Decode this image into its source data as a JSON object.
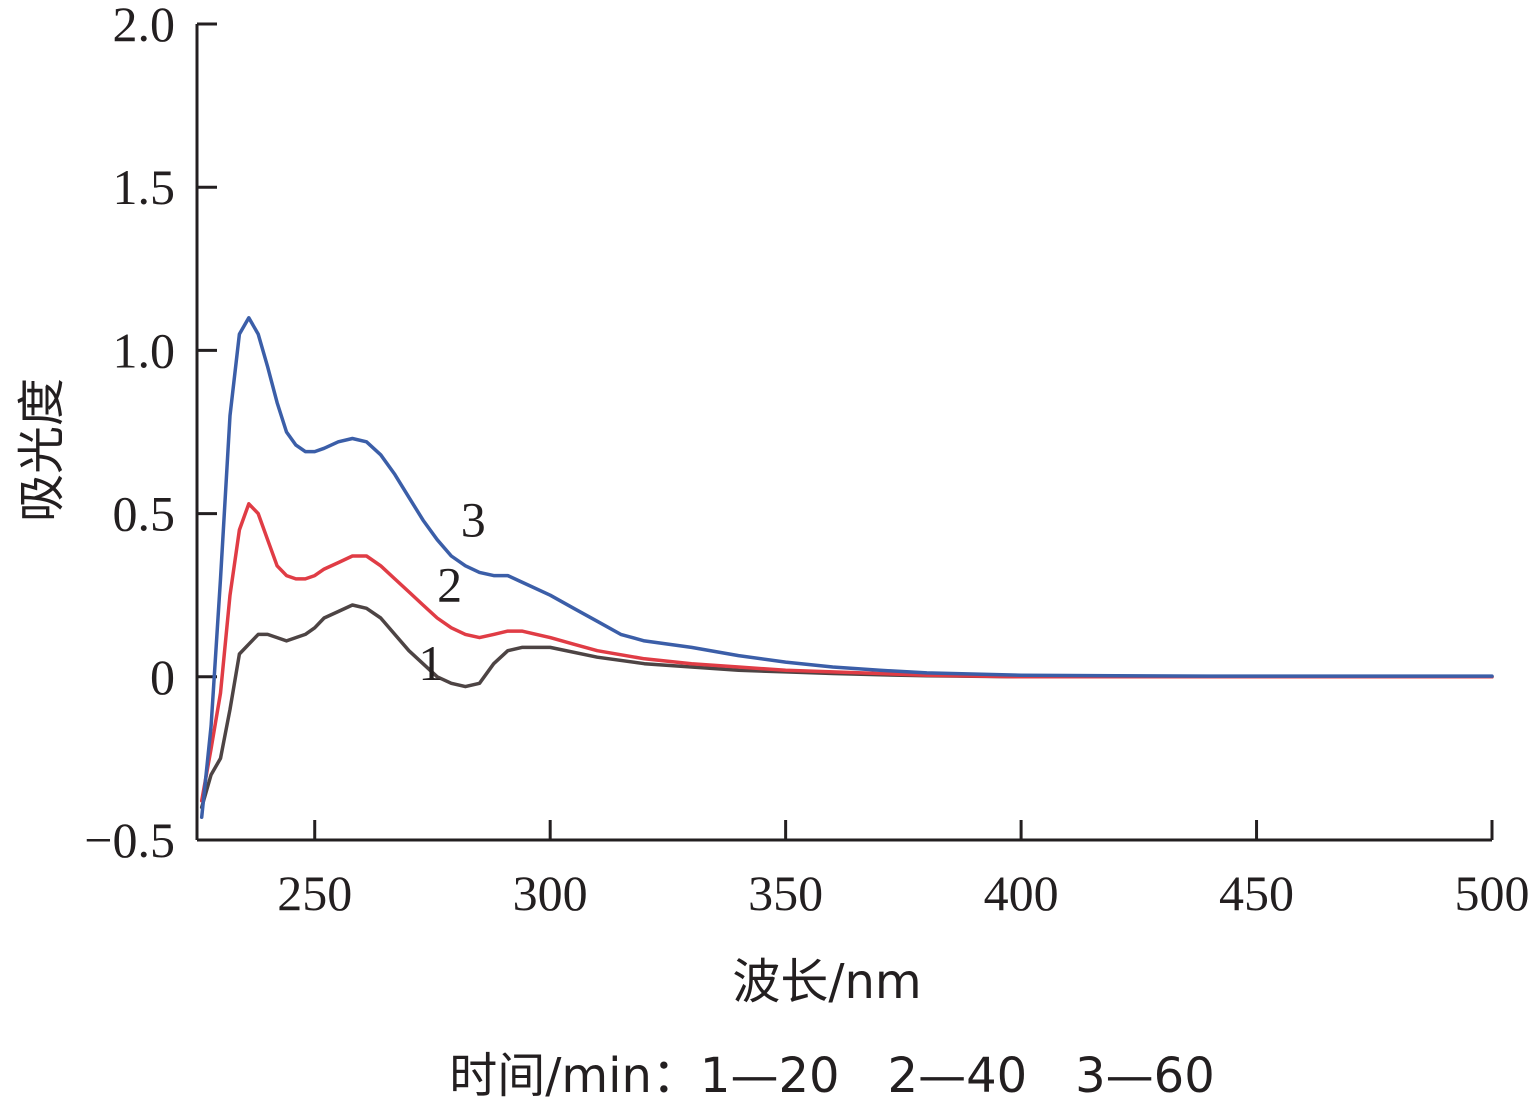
{
  "chart_data": {
    "type": "line",
    "xlabel": "波长/nm",
    "ylabel": "吸光度",
    "xlim": [
      225,
      500
    ],
    "ylim": [
      -0.5,
      2.0
    ],
    "x_ticks": [
      250,
      300,
      350,
      400,
      450,
      500
    ],
    "x_tick_labels": [
      "250",
      "300",
      "350",
      "400",
      "450",
      "500"
    ],
    "y_ticks": [
      -0.5,
      0,
      0.5,
      1.0,
      1.5,
      2.0
    ],
    "y_tick_labels": [
      "−0.5",
      "0",
      "0.5",
      "1.0",
      "1.5",
      "2.0"
    ],
    "grid": false,
    "legend_note": "时间/min：1—20　2—40　3—60",
    "series": [
      {
        "name": "1",
        "color": "#4d4444",
        "x": [
          226,
          228,
          230,
          232,
          234,
          236,
          238,
          240,
          242,
          244,
          246,
          248,
          250,
          252,
          255,
          258,
          261,
          264,
          267,
          270,
          273,
          276,
          279,
          282,
          285,
          288,
          291,
          294,
          300,
          310,
          320,
          330,
          340,
          350,
          360,
          370,
          380,
          400,
          420,
          440,
          460,
          480,
          500
        ],
        "y": [
          -0.4,
          -0.3,
          -0.25,
          -0.1,
          0.07,
          0.1,
          0.13,
          0.13,
          0.12,
          0.11,
          0.12,
          0.13,
          0.15,
          0.18,
          0.2,
          0.22,
          0.21,
          0.18,
          0.13,
          0.08,
          0.04,
          0.0,
          -0.02,
          -0.03,
          -0.02,
          0.04,
          0.08,
          0.09,
          0.09,
          0.06,
          0.04,
          0.03,
          0.02,
          0.015,
          0.01,
          0.006,
          0.003,
          0.0,
          0.0,
          0.0,
          0.0,
          0.0,
          0.0
        ]
      },
      {
        "name": "2",
        "color": "#e03c45",
        "x": [
          226,
          228,
          230,
          232,
          234,
          236,
          238,
          240,
          242,
          244,
          246,
          248,
          250,
          252,
          255,
          258,
          261,
          264,
          267,
          270,
          273,
          276,
          279,
          282,
          285,
          288,
          291,
          294,
          300,
          305,
          310,
          320,
          330,
          340,
          350,
          360,
          370,
          380,
          400,
          420,
          440,
          460,
          480,
          500
        ],
        "y": [
          -0.38,
          -0.22,
          -0.05,
          0.25,
          0.45,
          0.53,
          0.5,
          0.42,
          0.34,
          0.31,
          0.3,
          0.3,
          0.31,
          0.33,
          0.35,
          0.37,
          0.37,
          0.34,
          0.3,
          0.26,
          0.22,
          0.18,
          0.15,
          0.13,
          0.12,
          0.13,
          0.14,
          0.14,
          0.12,
          0.1,
          0.08,
          0.055,
          0.04,
          0.03,
          0.02,
          0.015,
          0.01,
          0.005,
          0.0,
          0.0,
          0.0,
          0.0,
          0.0,
          0.0
        ]
      },
      {
        "name": "3",
        "color": "#3b5ea8",
        "x": [
          226,
          228,
          230,
          232,
          234,
          236,
          238,
          240,
          242,
          244,
          246,
          248,
          250,
          252,
          255,
          258,
          261,
          264,
          267,
          270,
          273,
          276,
          279,
          282,
          285,
          288,
          291,
          294,
          300,
          305,
          310,
          315,
          320,
          330,
          340,
          350,
          360,
          370,
          380,
          400,
          420,
          440,
          460,
          480,
          500
        ],
        "y": [
          -0.43,
          -0.15,
          0.3,
          0.8,
          1.05,
          1.1,
          1.05,
          0.95,
          0.84,
          0.75,
          0.71,
          0.69,
          0.69,
          0.7,
          0.72,
          0.73,
          0.72,
          0.68,
          0.62,
          0.55,
          0.48,
          0.42,
          0.37,
          0.34,
          0.32,
          0.31,
          0.31,
          0.29,
          0.25,
          0.21,
          0.17,
          0.13,
          0.11,
          0.09,
          0.065,
          0.045,
          0.03,
          0.02,
          0.012,
          0.005,
          0.003,
          0.002,
          0.002,
          0.002,
          0.002
        ]
      }
    ]
  }
}
